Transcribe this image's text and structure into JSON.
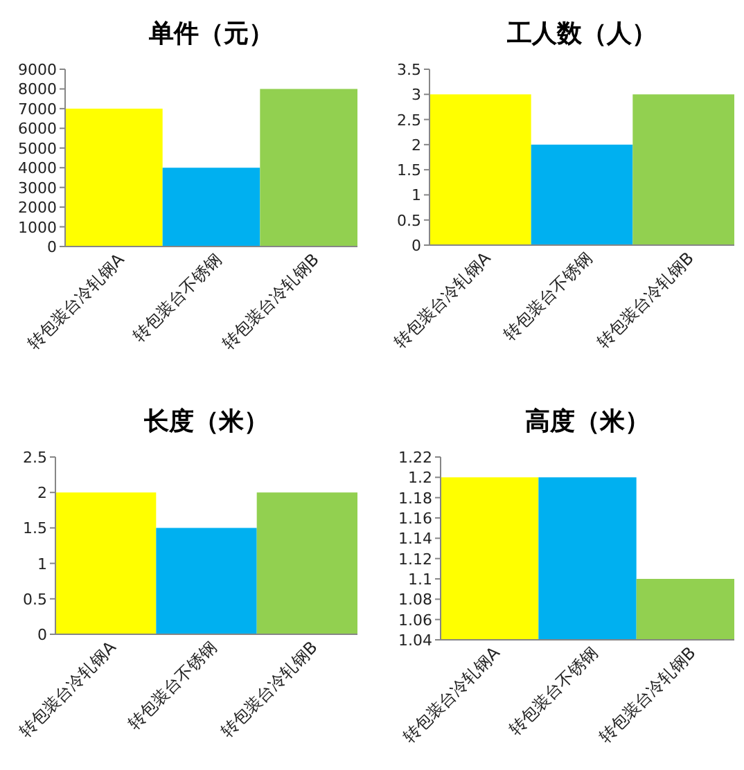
{
  "chart_data": [
    {
      "type": "bar",
      "title": "单件（元）",
      "categories": [
        "转包装台冷轧钢A",
        "转包装台不锈钢",
        "转包装台冷轧钢B"
      ],
      "colors": [
        "#ffff00",
        "#00b0f0",
        "#92d050"
      ],
      "values": [
        7000,
        4000,
        8000
      ],
      "ylim": [
        0,
        9000
      ],
      "yticks": [
        0,
        1000,
        2000,
        3000,
        4000,
        5000,
        6000,
        7000,
        8000,
        9000
      ]
    },
    {
      "type": "bar",
      "title": "工人数（人）",
      "categories": [
        "转包装台冷轧钢A",
        "转包装台不锈钢",
        "转包装台冷轧钢B"
      ],
      "colors": [
        "#ffff00",
        "#00b0f0",
        "#92d050"
      ],
      "values": [
        3,
        2,
        3
      ],
      "ylim": [
        0,
        3.5
      ],
      "yticks": [
        0,
        0.5,
        1,
        1.5,
        2,
        2.5,
        3,
        3.5
      ]
    },
    {
      "type": "bar",
      "title": "长度（米）",
      "categories": [
        "转包装台冷轧钢A",
        "转包装台不锈钢",
        "转包装台冷轧钢B"
      ],
      "colors": [
        "#ffff00",
        "#00b0f0",
        "#92d050"
      ],
      "values": [
        2,
        1.5,
        2
      ],
      "ylim": [
        0,
        2.5
      ],
      "yticks": [
        0,
        0.5,
        1,
        1.5,
        2,
        2.5
      ]
    },
    {
      "type": "bar",
      "title": "高度（米）",
      "categories": [
        "转包装台冷轧钢A",
        "转包装台不锈钢",
        "转包装台冷轧钢B"
      ],
      "colors": [
        "#ffff00",
        "#00b0f0",
        "#92d050"
      ],
      "values": [
        1.2,
        1.2,
        1.1
      ],
      "ylim": [
        1.04,
        1.22
      ],
      "yticks": [
        1.04,
        1.06,
        1.08,
        1.1,
        1.12,
        1.14,
        1.16,
        1.18,
        1.2,
        1.22
      ]
    }
  ]
}
